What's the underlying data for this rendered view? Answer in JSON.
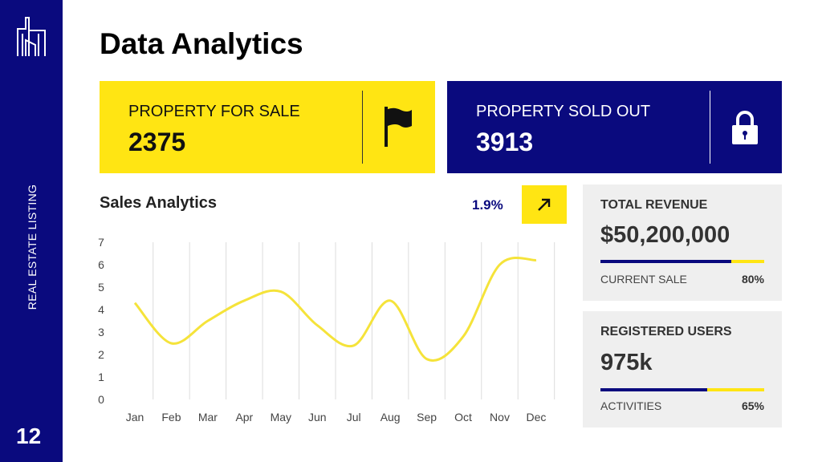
{
  "sidebar": {
    "vertical_label": "REAL ESTATE LISTING",
    "page_number": "12",
    "logo": "building-icon"
  },
  "title": "Data Analytics",
  "cards": [
    {
      "label": "PROPERTY FOR SALE",
      "value": "2375",
      "icon": "flag-icon"
    },
    {
      "label": "PROPERTY SOLD OUT",
      "value": "3913",
      "icon": "lock-icon"
    }
  ],
  "sales": {
    "title": "Sales Analytics",
    "change": "1.9%",
    "change_icon": "arrow-up-right-icon"
  },
  "panels": [
    {
      "title": "TOTAL REVENUE",
      "value": "$50,200,000",
      "sub_label": "CURRENT SALE",
      "sub_value": "80%",
      "progress": 0.8
    },
    {
      "title": "REGISTERED USERS",
      "value": "975k",
      "sub_label": "ACTIVITIES",
      "sub_value": "65%",
      "progress": 0.65
    }
  ],
  "colors": {
    "navy": "#0a0a7e",
    "yellow": "#ffe513"
  },
  "chart_data": {
    "type": "line",
    "categories": [
      "Jan",
      "Feb",
      "Mar",
      "Apr",
      "May",
      "Jun",
      "Jul",
      "Aug",
      "Sep",
      "Oct",
      "Nov",
      "Dec"
    ],
    "values": [
      4.3,
      2.5,
      3.5,
      4.4,
      4.8,
      3.3,
      2.4,
      4.4,
      1.8,
      2.8,
      6.0,
      6.2
    ],
    "yticks": [
      "0",
      "1",
      "2",
      "3",
      "4",
      "5",
      "6",
      "7"
    ],
    "ylim": [
      0,
      7
    ],
    "smooth": true,
    "grid": "vertical",
    "legend": "none"
  }
}
